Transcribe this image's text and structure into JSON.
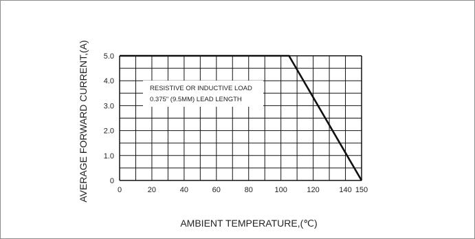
{
  "chart_data": {
    "type": "line",
    "xlabel": "AMBIENT TEMPERATURE,(℃)",
    "ylabel": "AVERAGE FORWARD CURRENT,(A)",
    "xlim": [
      0,
      150
    ],
    "ylim": [
      0,
      5
    ],
    "x_ticks": [
      "0",
      "20",
      "40",
      "60",
      "80",
      "100",
      "120",
      "140",
      "150"
    ],
    "x_tick_values": [
      0,
      20,
      40,
      60,
      80,
      100,
      120,
      140,
      150
    ],
    "y_ticks": [
      "0",
      "1.0",
      "2.0",
      "3.0",
      "4.0",
      "5.0"
    ],
    "y_tick_values": [
      0,
      1,
      2,
      3,
      4,
      5
    ],
    "x_grid_step": 10,
    "y_grid_step": 0.5,
    "grid": true,
    "annotation": [
      "RESISTIVE OR INDUCTIVE LOAD",
      "0.375\" (9.5MM) LEAD LENGTH"
    ],
    "series": [
      {
        "x": [
          0,
          105,
          150
        ],
        "y": [
          5,
          5,
          0
        ]
      }
    ],
    "colors": {
      "line": "#111111",
      "grid": "#111111"
    }
  }
}
